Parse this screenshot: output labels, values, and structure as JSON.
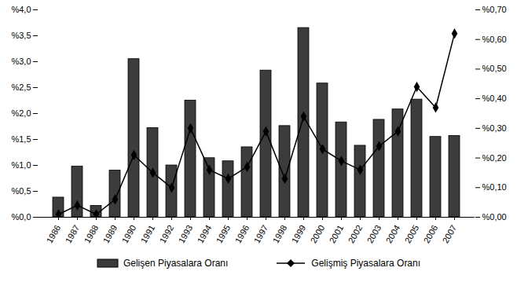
{
  "chart_data": {
    "type": "bar",
    "categories": [
      "1986",
      "1987",
      "1988",
      "1989",
      "1990",
      "1991",
      "1992",
      "1993",
      "1994",
      "1995",
      "1996",
      "1997",
      "1998",
      "1999",
      "2000",
      "2001",
      "2002",
      "2003",
      "2004",
      "2005",
      "2006",
      "2007"
    ],
    "series": [
      {
        "name": "Gelişen Piyasalara Oranı",
        "type": "bar",
        "color": "#3c3c3c",
        "values": [
          0.38,
          0.98,
          0.22,
          0.9,
          3.05,
          1.72,
          1.0,
          2.25,
          1.14,
          1.08,
          1.35,
          2.83,
          1.76,
          3.65,
          2.58,
          1.83,
          1.38,
          1.88,
          2.08,
          2.27,
          1.55,
          1.57
        ]
      },
      {
        "name": "Gelişmiş Piyasalara Oranı",
        "type": "line",
        "axis": "y2",
        "color": "#000000",
        "marker": "diamond",
        "values": [
          0.01,
          0.04,
          0.01,
          0.06,
          0.21,
          0.15,
          0.1,
          0.3,
          0.16,
          0.13,
          0.17,
          0.29,
          0.13,
          0.34,
          0.23,
          0.19,
          0.16,
          0.24,
          0.29,
          0.44,
          0.37,
          0.62
        ]
      }
    ],
    "ylim": [
      0,
      4
    ],
    "yticks": [
      {
        "value": 0,
        "label": "%0,0"
      },
      {
        "value": 0.5,
        "label": "%0,5"
      },
      {
        "value": 1,
        "label": "%1,0"
      },
      {
        "value": 1.5,
        "label": "%1,5"
      },
      {
        "value": 2,
        "label": "%2,0"
      },
      {
        "value": 2.5,
        "label": "%2,5"
      },
      {
        "value": 3,
        "label": "%3,0"
      },
      {
        "value": 3.5,
        "label": "%3,5"
      },
      {
        "value": 4,
        "label": "%4,0"
      }
    ],
    "y2lim": [
      0,
      0.7
    ],
    "y2ticks": [
      {
        "value": 0,
        "label": "%0,00"
      },
      {
        "value": 0.1,
        "label": "%0,10"
      },
      {
        "value": 0.2,
        "label": "%0,20"
      },
      {
        "value": 0.3,
        "label": "%0,30"
      },
      {
        "value": 0.4,
        "label": "%0,40"
      },
      {
        "value": 0.5,
        "label": "%0,50"
      },
      {
        "value": 0.6,
        "label": "%0,60"
      },
      {
        "value": 0.7,
        "label": "%0,70"
      }
    ],
    "grid": false,
    "legend": "bottom"
  }
}
